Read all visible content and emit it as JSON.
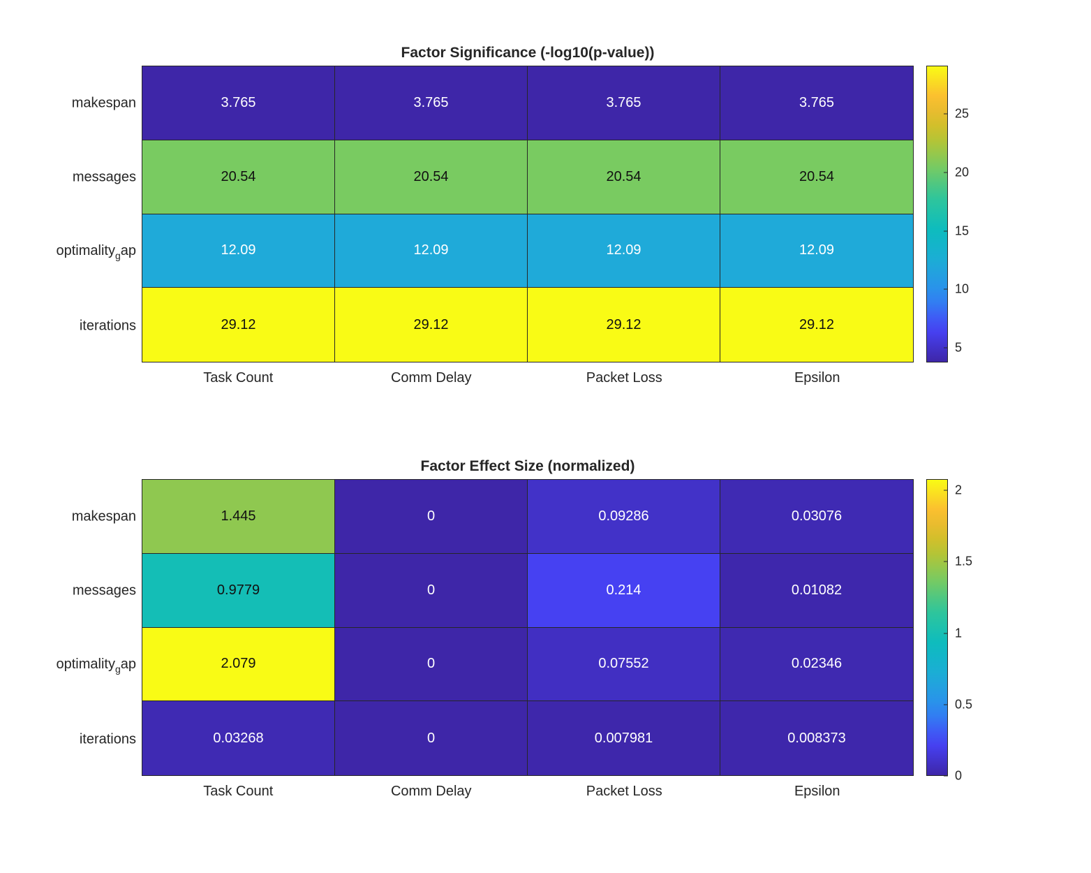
{
  "chart_data": [
    {
      "type": "heatmap",
      "title": "Factor Significance (-log10(p-value))",
      "xlabel": "",
      "ylabel": "",
      "x_categories": [
        "Task Count",
        "Comm Delay",
        "Packet Loss",
        "Epsilon"
      ],
      "y_categories": [
        "makespan",
        "messages",
        "optimality_gap",
        "iterations"
      ],
      "y_display": [
        {
          "main": "makespan",
          "sub": "",
          "tail": ""
        },
        {
          "main": "messages",
          "sub": "",
          "tail": ""
        },
        {
          "main": "optimality",
          "sub": "g",
          "tail": "ap"
        },
        {
          "main": "iterations",
          "sub": "",
          "tail": ""
        }
      ],
      "values": [
        [
          3.765,
          3.765,
          3.765,
          3.765
        ],
        [
          20.54,
          20.54,
          20.54,
          20.54
        ],
        [
          12.09,
          12.09,
          12.09,
          12.09
        ],
        [
          29.12,
          29.12,
          29.12,
          29.12
        ]
      ],
      "labels": [
        [
          "3.765",
          "3.765",
          "3.765",
          "3.765"
        ],
        [
          "20.54",
          "20.54",
          "20.54",
          "20.54"
        ],
        [
          "12.09",
          "12.09",
          "12.09",
          "12.09"
        ],
        [
          "29.12",
          "29.12",
          "29.12",
          "29.12"
        ]
      ],
      "colorbar": {
        "range": [
          3.765,
          29.12
        ],
        "ticks": [
          5,
          10,
          15,
          20,
          25
        ],
        "tick_labels": [
          "5",
          "10",
          "15",
          "20",
          "25"
        ]
      },
      "colormap": "parula"
    },
    {
      "type": "heatmap",
      "title": "Factor Effect Size (normalized)",
      "xlabel": "",
      "ylabel": "",
      "x_categories": [
        "Task Count",
        "Comm Delay",
        "Packet Loss",
        "Epsilon"
      ],
      "y_categories": [
        "makespan",
        "messages",
        "optimality_gap",
        "iterations"
      ],
      "y_display": [
        {
          "main": "makespan",
          "sub": "",
          "tail": ""
        },
        {
          "main": "messages",
          "sub": "",
          "tail": ""
        },
        {
          "main": "optimality",
          "sub": "g",
          "tail": "ap"
        },
        {
          "main": "iterations",
          "sub": "",
          "tail": ""
        }
      ],
      "values": [
        [
          1.445,
          0,
          0.09286,
          0.03076
        ],
        [
          0.9779,
          0,
          0.214,
          0.01082
        ],
        [
          2.079,
          0,
          0.07552,
          0.02346
        ],
        [
          0.03268,
          0,
          0.007981,
          0.008373
        ]
      ],
      "labels": [
        [
          "1.445",
          "0",
          "0.09286",
          "0.03076"
        ],
        [
          "0.9779",
          "0",
          "0.214",
          "0.01082"
        ],
        [
          "2.079",
          "0",
          "0.07552",
          "0.02346"
        ],
        [
          "0.03268",
          "0",
          "0.007981",
          "0.008373"
        ]
      ],
      "colorbar": {
        "range": [
          0,
          2.079
        ],
        "ticks": [
          0,
          0.5,
          1,
          1.5,
          2
        ],
        "tick_labels": [
          "0",
          "0.5",
          "1",
          "1.5",
          "2"
        ]
      },
      "colormap": "parula"
    }
  ],
  "colors": {
    "parula_stops": [
      "#3e26a8",
      "#4743f8",
      "#2d8bf0",
      "#1eabd8",
      "#0cbcbf",
      "#30c59a",
      "#7ccb5e",
      "#c8c129",
      "#fbb932",
      "#f9fb15"
    ]
  }
}
